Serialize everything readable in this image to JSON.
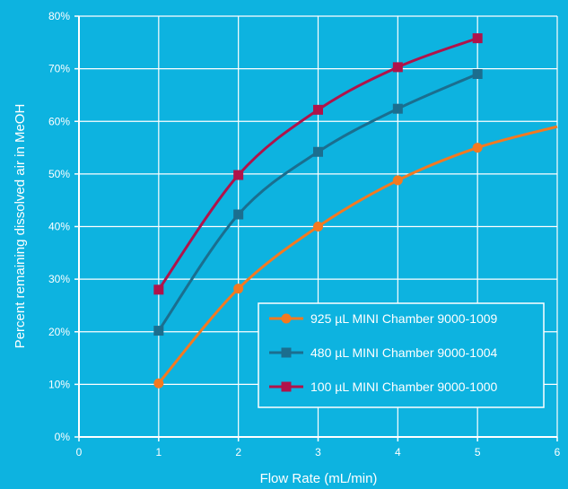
{
  "chart_data": {
    "type": "line",
    "title": "",
    "xlabel": "Flow Rate (mL/min)",
    "ylabel": "Percent remaining dissolved air in MeOH",
    "xlim": [
      0,
      6
    ],
    "ylim": [
      0,
      80
    ],
    "x_ticks": [
      "0",
      "1",
      "2",
      "3",
      "4",
      "5",
      "6"
    ],
    "y_ticks": [
      "0%",
      "10%",
      "20%",
      "30%",
      "40%",
      "50%",
      "60%",
      "70%",
      "80%"
    ],
    "grid": true,
    "legend_position": "bottom-right",
    "series": [
      {
        "name": "925 µL MINI Chamber 9000-1009",
        "color": "#f47920",
        "marker": "circle",
        "x": [
          1,
          2,
          3,
          4,
          5
        ],
        "values": [
          10.2,
          28.2,
          40.0,
          48.8,
          55.0
        ],
        "trend_extension": {
          "x": 6,
          "value": 59.0
        }
      },
      {
        "name": "480 µL MINI Chamber 9000-1004",
        "color": "#1b6e8f",
        "marker": "square",
        "x": [
          1,
          2,
          3,
          4,
          5
        ],
        "values": [
          20.2,
          42.3,
          54.2,
          62.4,
          69.0
        ]
      },
      {
        "name": "100 µL MINI Chamber 9000-1000",
        "color": "#b0134a",
        "marker": "square",
        "x": [
          1,
          2,
          3,
          4,
          5
        ],
        "values": [
          28.0,
          49.8,
          62.2,
          70.3,
          75.8
        ]
      }
    ]
  }
}
